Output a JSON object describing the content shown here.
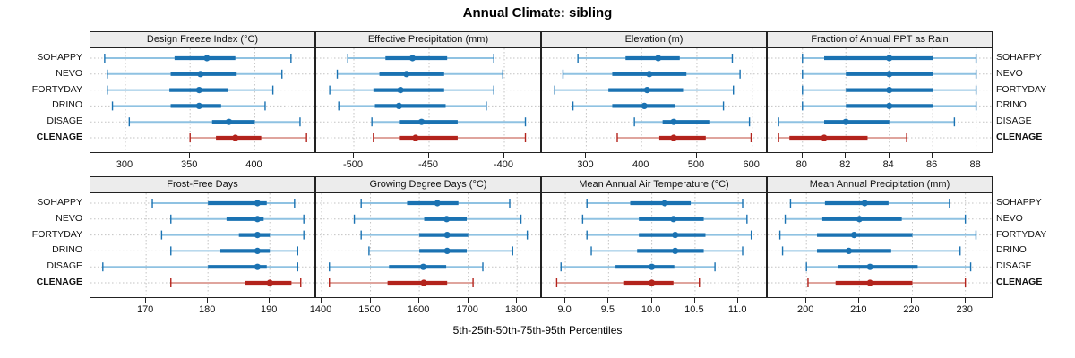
{
  "title": "Annual Climate: sibling",
  "xlabel": "5th-25th-50th-75th-95th Percentiles",
  "stations": [
    "SOHAPPY",
    "NEVO",
    "FORTYDAY",
    "DRINO",
    "DISAGE",
    "CLENAGE"
  ],
  "highlight_station": "CLENAGE",
  "colors": {
    "station_normal": "#1a72b2",
    "station_normal_light": "#8fc2e2",
    "station_highlight": "#b3231c",
    "station_highlight_light": "#dfa49d",
    "strip_background": "#ececec",
    "panel_border": "#222222",
    "grid_line": "#c3c3c3"
  },
  "chart_data": {
    "type": "table",
    "subtype": "lattice-percentile-interval-plot",
    "percentile_labels": [
      "5th",
      "25th",
      "50th",
      "75th",
      "95th"
    ],
    "legend_position": "none",
    "grid": "dotted",
    "panels": [
      {
        "title": "Design Freeze Index (°C)",
        "grid_row": 0,
        "grid_col": 0,
        "domain": [
          273,
          447.5
        ],
        "ticks": [
          300,
          350,
          400
        ],
        "tick_labels": [
          "300",
          "350",
          "400"
        ],
        "series": {
          "SOHAPPY": [
            284,
            338,
            363,
            385,
            428
          ],
          "NEVO": [
            286,
            335,
            358,
            386,
            421
          ],
          "FORTYDAY": [
            286,
            334,
            357,
            379,
            414
          ],
          "DRINO": [
            290,
            335,
            357,
            374,
            408
          ],
          "DISAGE": [
            303,
            367,
            380,
            400,
            435
          ],
          "CLENAGE": [
            350,
            370,
            385,
            405,
            440
          ]
        }
      },
      {
        "title": "Effective Precipitation (mm)",
        "grid_row": 0,
        "grid_col": 1,
        "domain": [
          -525,
          -375
        ],
        "ticks": [
          -500,
          -450,
          -400
        ],
        "tick_labels": [
          "-500",
          "-450",
          "-400"
        ],
        "series": {
          "SOHAPPY": [
            -504,
            -479,
            -461,
            -438,
            -407
          ],
          "NEVO": [
            -511,
            -483,
            -465,
            -440,
            -401
          ],
          "FORTYDAY": [
            -516,
            -487,
            -469,
            -440,
            -407
          ],
          "DRINO": [
            -510,
            -486,
            -470,
            -439,
            -412
          ],
          "DISAGE": [
            -488,
            -470,
            -455,
            -431,
            -386
          ],
          "CLENAGE": [
            -487,
            -470,
            -459,
            -431,
            -386
          ]
        }
      },
      {
        "title": "Elevation (m)",
        "grid_row": 0,
        "grid_col": 2,
        "domain": [
          220,
          628
        ],
        "ticks": [
          300,
          400,
          500,
          600
        ],
        "tick_labels": [
          "300",
          "400",
          "500",
          "600"
        ],
        "series": {
          "SOHAPPY": [
            285,
            371,
            430,
            469,
            564
          ],
          "NEVO": [
            258,
            347,
            414,
            481,
            578
          ],
          "FORTYDAY": [
            243,
            340,
            410,
            475,
            566
          ],
          "DRINO": [
            276,
            347,
            405,
            461,
            548
          ],
          "DISAGE": [
            387,
            438,
            458,
            524,
            595
          ],
          "CLENAGE": [
            356,
            432,
            458,
            516,
            598
          ]
        }
      },
      {
        "title": "Fraction of Annual PPT as Rain",
        "grid_row": 0,
        "grid_col": 3,
        "domain": [
          78.4,
          88.8
        ],
        "ticks": [
          80,
          82,
          84,
          86,
          88
        ],
        "tick_labels": [
          "80",
          "82",
          "84",
          "86",
          "88"
        ],
        "series": {
          "SOHAPPY": [
            80,
            81,
            84,
            86,
            88
          ],
          "NEVO": [
            80,
            82,
            84,
            86,
            88
          ],
          "FORTYDAY": [
            80,
            82,
            84,
            86,
            88
          ],
          "DRINO": [
            80,
            82,
            84,
            86,
            88
          ],
          "DISAGE": [
            78.9,
            81,
            82,
            84,
            87
          ],
          "CLENAGE": [
            78.9,
            79.4,
            81,
            83,
            84.8
          ]
        }
      },
      {
        "title": "Frost-Free Days",
        "grid_row": 1,
        "grid_col": 0,
        "domain": [
          161,
          197.5
        ],
        "ticks": [
          170,
          180,
          190
        ],
        "tick_labels": [
          "170",
          "180",
          "190"
        ],
        "series": {
          "SOHAPPY": [
            171,
            180,
            188,
            189.5,
            194
          ],
          "NEVO": [
            174,
            183,
            188,
            189,
            195.5
          ],
          "FORTYDAY": [
            172.5,
            185,
            188,
            190,
            195.5
          ],
          "DRINO": [
            174,
            182,
            188,
            190,
            194.5
          ],
          "DISAGE": [
            163,
            180,
            188,
            189.5,
            194.5
          ],
          "CLENAGE": [
            174,
            186,
            190,
            193.5,
            195
          ]
        }
      },
      {
        "title": "Growing Degree Days (°C)",
        "grid_row": 1,
        "grid_col": 1,
        "domain": [
          1389,
          1851
        ],
        "ticks": [
          1400,
          1500,
          1600,
          1700,
          1800
        ],
        "tick_labels": [
          "1400",
          "1500",
          "1600",
          "1700",
          "1800"
        ],
        "series": {
          "SOHAPPY": [
            1481,
            1575,
            1637,
            1680,
            1785
          ],
          "NEVO": [
            1467,
            1610,
            1656,
            1697,
            1808
          ],
          "FORTYDAY": [
            1481,
            1600,
            1657,
            1700,
            1821
          ],
          "DRINO": [
            1497,
            1600,
            1657,
            1697,
            1791
          ],
          "DISAGE": [
            1416,
            1538,
            1608,
            1655,
            1730
          ],
          "CLENAGE": [
            1416,
            1535,
            1609,
            1657,
            1710
          ]
        }
      },
      {
        "title": "Mean Annual Air Temperature (°C)",
        "grid_row": 1,
        "grid_col": 2,
        "domain": [
          8.73,
          11.34
        ],
        "ticks": [
          9.0,
          9.5,
          10.0,
          10.5,
          11.0
        ],
        "tick_labels": [
          "9.0",
          "9.5",
          "10.0",
          "10.5",
          "11.0"
        ],
        "series": {
          "SOHAPPY": [
            9.25,
            9.75,
            10.15,
            10.45,
            11.05
          ],
          "NEVO": [
            9.2,
            9.85,
            10.25,
            10.6,
            11.1
          ],
          "FORTYDAY": [
            9.25,
            9.85,
            10.27,
            10.62,
            11.15
          ],
          "DRINO": [
            9.3,
            9.83,
            10.27,
            10.6,
            11.05
          ],
          "DISAGE": [
            8.95,
            9.58,
            10.0,
            10.26,
            10.73
          ],
          "CLENAGE": [
            8.9,
            9.68,
            10.0,
            10.25,
            10.55
          ]
        }
      },
      {
        "title": "Mean Annual Precipitation (mm)",
        "grid_row": 1,
        "grid_col": 3,
        "domain": [
          192.7,
          235.3
        ],
        "ticks": [
          200,
          210,
          220,
          230
        ],
        "tick_labels": [
          "200",
          "210",
          "220",
          "230"
        ],
        "series": {
          "SOHAPPY": [
            197,
            203.5,
            211,
            215.5,
            227
          ],
          "NEVO": [
            196,
            203,
            210,
            218,
            230
          ],
          "FORTYDAY": [
            195,
            202,
            209,
            220,
            232
          ],
          "DRINO": [
            195.5,
            202,
            208,
            216,
            229
          ],
          "DISAGE": [
            200,
            206,
            212,
            221,
            231
          ],
          "CLENAGE": [
            200.3,
            205.5,
            212,
            220,
            230
          ]
        }
      }
    ]
  }
}
